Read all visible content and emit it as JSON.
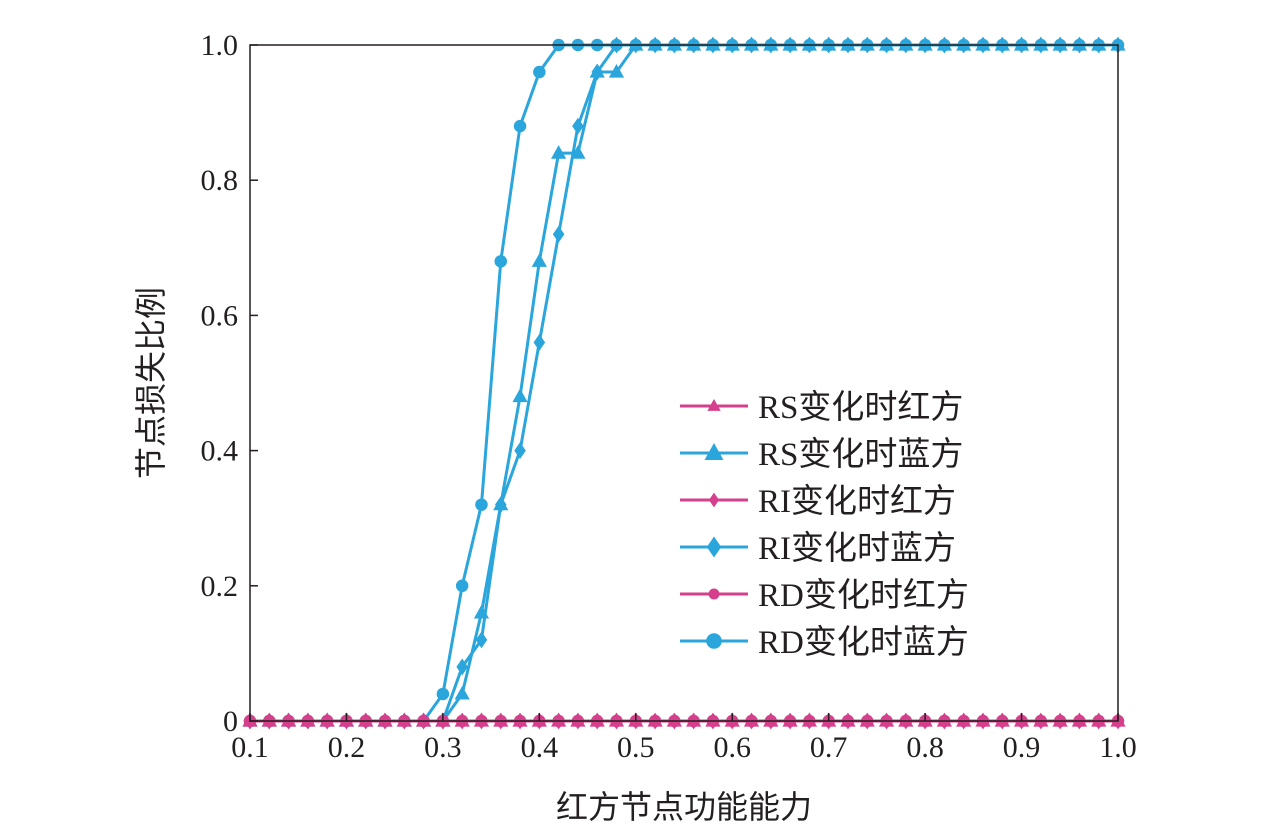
{
  "chart_data": {
    "type": "line",
    "xlabel": "红方节点功能能力",
    "ylabel": "节点损失比例",
    "xlim": [
      0.1,
      1.0
    ],
    "ylim": [
      0,
      1.0
    ],
    "x_ticks": [
      "0.1",
      "0.2",
      "0.3",
      "0.4",
      "0.5",
      "0.6",
      "0.7",
      "0.8",
      "0.9",
      "1.0"
    ],
    "y_ticks": [
      "0",
      "0.2",
      "0.4",
      "0.6",
      "0.8",
      "1.0"
    ],
    "grid": false,
    "legend_position": "center-right",
    "colors": {
      "red_side": "#d63f8b",
      "blue_side": "#2aa6dc"
    },
    "x": [
      0.1,
      0.12,
      0.14,
      0.16,
      0.18,
      0.2,
      0.22,
      0.24,
      0.26,
      0.28,
      0.3,
      0.32,
      0.34,
      0.36,
      0.38,
      0.4,
      0.42,
      0.44,
      0.46,
      0.48,
      0.5,
      0.52,
      0.54,
      0.56,
      0.58,
      0.6,
      0.62,
      0.64,
      0.66,
      0.68,
      0.7,
      0.72,
      0.74,
      0.76,
      0.78,
      0.8,
      0.82,
      0.84,
      0.86,
      0.88,
      0.9,
      0.92,
      0.94,
      0.96,
      0.98,
      1.0
    ],
    "series": [
      {
        "name": "RS变化时红方",
        "marker": "triangle",
        "color": "#d63f8b",
        "values": [
          0,
          0,
          0,
          0,
          0,
          0,
          0,
          0,
          0,
          0,
          0,
          0,
          0,
          0,
          0,
          0,
          0,
          0,
          0,
          0,
          0,
          0,
          0,
          0,
          0,
          0,
          0,
          0,
          0,
          0,
          0,
          0,
          0,
          0,
          0,
          0,
          0,
          0,
          0,
          0,
          0,
          0,
          0,
          0,
          0,
          0
        ]
      },
      {
        "name": "RS变化时蓝方",
        "marker": "triangle",
        "color": "#2aa6dc",
        "values": [
          0,
          0,
          0,
          0,
          0,
          0,
          0,
          0,
          0,
          0,
          0,
          0.04,
          0.16,
          0.32,
          0.48,
          0.68,
          0.84,
          0.84,
          0.96,
          0.96,
          1,
          1,
          1,
          1,
          1,
          1,
          1,
          1,
          1,
          1,
          1,
          1,
          1,
          1,
          1,
          1,
          1,
          1,
          1,
          1,
          1,
          1,
          1,
          1,
          1,
          1
        ]
      },
      {
        "name": "RI变化时红方",
        "marker": "diamond",
        "color": "#d63f8b",
        "values": [
          0,
          0,
          0,
          0,
          0,
          0,
          0,
          0,
          0,
          0,
          0,
          0,
          0,
          0,
          0,
          0,
          0,
          0,
          0,
          0,
          0,
          0,
          0,
          0,
          0,
          0,
          0,
          0,
          0,
          0,
          0,
          0,
          0,
          0,
          0,
          0,
          0,
          0,
          0,
          0,
          0,
          0,
          0,
          0,
          0,
          0
        ]
      },
      {
        "name": "RI变化时蓝方",
        "marker": "diamond",
        "color": "#2aa6dc",
        "values": [
          0,
          0,
          0,
          0,
          0,
          0,
          0,
          0,
          0,
          0,
          0,
          0.08,
          0.12,
          0.32,
          0.4,
          0.56,
          0.72,
          0.88,
          0.96,
          1,
          1,
          1,
          1,
          1,
          1,
          1,
          1,
          1,
          1,
          1,
          1,
          1,
          1,
          1,
          1,
          1,
          1,
          1,
          1,
          1,
          1,
          1,
          1,
          1,
          1,
          1
        ]
      },
      {
        "name": "RD变化时红方",
        "marker": "circle",
        "color": "#d63f8b",
        "values": [
          0,
          0,
          0,
          0,
          0,
          0,
          0,
          0,
          0,
          0,
          0,
          0,
          0,
          0,
          0,
          0,
          0,
          0,
          0,
          0,
          0,
          0,
          0,
          0,
          0,
          0,
          0,
          0,
          0,
          0,
          0,
          0,
          0,
          0,
          0,
          0,
          0,
          0,
          0,
          0,
          0,
          0,
          0,
          0,
          0,
          0
        ]
      },
      {
        "name": "RD变化时蓝方",
        "marker": "circle",
        "color": "#2aa6dc",
        "values": [
          0,
          0,
          0,
          0,
          0,
          0,
          0,
          0,
          0,
          0,
          0.04,
          0.2,
          0.32,
          0.68,
          0.88,
          0.96,
          1,
          1,
          1,
          1,
          1,
          1,
          1,
          1,
          1,
          1,
          1,
          1,
          1,
          1,
          1,
          1,
          1,
          1,
          1,
          1,
          1,
          1,
          1,
          1,
          1,
          1,
          1,
          1,
          1,
          1
        ]
      }
    ]
  }
}
